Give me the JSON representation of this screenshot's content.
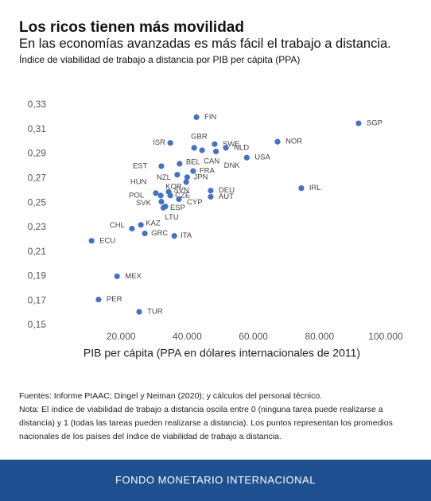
{
  "chart_data": {
    "type": "scatter",
    "title": "Los ricos tienen más movilidad",
    "subtitle": "En las economías avanzadas es más fácil el trabajo a distancia.",
    "caption": "Índice de viabilidad de trabajo a distancia por PIB per cápita (PPA)",
    "x_label": "PIB per cápita (PPA en dólares internacionales de 2011)",
    "color": "#4472c4",
    "xlim": [
      0,
      100000
    ],
    "xticks": [
      {
        "value": 20000,
        "label": "20.000"
      },
      {
        "value": 40000,
        "label": "40.000"
      },
      {
        "value": 60000,
        "label": "60.000"
      },
      {
        "value": 80000,
        "label": "80.000"
      },
      {
        "value": 100000,
        "label": "100.000"
      }
    ],
    "ylim": [
      0.15,
      0.33
    ],
    "yticks": [
      {
        "value": 0.15,
        "label": "0,15"
      },
      {
        "value": 0.17,
        "label": "0,17"
      },
      {
        "value": 0.19,
        "label": "0,19"
      },
      {
        "value": 0.21,
        "label": "0,21"
      },
      {
        "value": 0.23,
        "label": "0,23"
      },
      {
        "value": 0.25,
        "label": "0,25"
      },
      {
        "value": 0.27,
        "label": "0,27"
      },
      {
        "value": 0.29,
        "label": "0,29"
      },
      {
        "value": 0.31,
        "label": "0,31"
      },
      {
        "value": 0.33,
        "label": "0,33"
      }
    ],
    "points": [
      {
        "label": "FIN",
        "x": 42800,
        "y": 0.32
      },
      {
        "label": "SGP",
        "x": 91800,
        "y": 0.315
      },
      {
        "label": "NOR",
        "x": 67300,
        "y": 0.3
      },
      {
        "label": "ISR",
        "x": 34900,
        "y": 0.299
      },
      {
        "label": "SWE",
        "x": 48300,
        "y": 0.298
      },
      {
        "label": "GBR",
        "x": 42100,
        "y": 0.295
      },
      {
        "label": "NLD",
        "x": 51700,
        "y": 0.295
      },
      {
        "label": "CAN",
        "x": 44500,
        "y": 0.293
      },
      {
        "label": "DNK",
        "x": 48700,
        "y": 0.292
      },
      {
        "label": "USA",
        "x": 58000,
        "y": 0.287
      },
      {
        "label": "BEL",
        "x": 37700,
        "y": 0.282
      },
      {
        "label": "EST",
        "x": 32200,
        "y": 0.28
      },
      {
        "label": "FRA",
        "x": 41800,
        "y": 0.276
      },
      {
        "label": "NZL",
        "x": 37000,
        "y": 0.273
      },
      {
        "label": "JPN",
        "x": 40000,
        "y": 0.271
      },
      {
        "label": "KOR",
        "x": 39700,
        "y": 0.267
      },
      {
        "label": "IRL",
        "x": 74500,
        "y": 0.262
      },
      {
        "label": "DEU",
        "x": 47100,
        "y": 0.26
      },
      {
        "label": "SVN",
        "x": 34400,
        "y": 0.259
      },
      {
        "label": "HUN",
        "x": 30500,
        "y": 0.258
      },
      {
        "label": "POL",
        "x": 32000,
        "y": 0.256
      },
      {
        "label": "CZE",
        "x": 34900,
        "y": 0.256
      },
      {
        "label": "AUT",
        "x": 47100,
        "y": 0.255
      },
      {
        "label": "CYP",
        "x": 37500,
        "y": 0.253
      },
      {
        "label": "ESP",
        "x": 33400,
        "y": 0.247
      },
      {
        "label": "SVK",
        "x": 32200,
        "y": 0.251
      },
      {
        "label": "LTU",
        "x": 32800,
        "y": 0.246
      },
      {
        "label": "KAZ",
        "x": 26000,
        "y": 0.232
      },
      {
        "label": "CHL",
        "x": 23300,
        "y": 0.229
      },
      {
        "label": "GRC",
        "x": 27200,
        "y": 0.225
      },
      {
        "label": "ITA",
        "x": 36100,
        "y": 0.223
      },
      {
        "label": "ECU",
        "x": 11100,
        "y": 0.219
      },
      {
        "label": "MEX",
        "x": 18800,
        "y": 0.19
      },
      {
        "label": "PER",
        "x": 13200,
        "y": 0.171
      },
      {
        "label": "TUR",
        "x": 25500,
        "y": 0.161
      }
    ]
  },
  "notes": [
    "Fuentes: Informe PIAAC; Dingel y Neiman (2020); y cálculos del personal técnico.",
    "Nota: El índice de viabilidad de trabajo a distancia oscila entre 0 (ninguna tarea puede realizarse a distancia) y 1 (todas las tareas pueden realizarse a distancia). Los puntos representan los promedios nacionales de los países del índice de viabilidad de trabajo a distancia."
  ],
  "footer": "FONDO MONETARIO INTERNACIONAL"
}
